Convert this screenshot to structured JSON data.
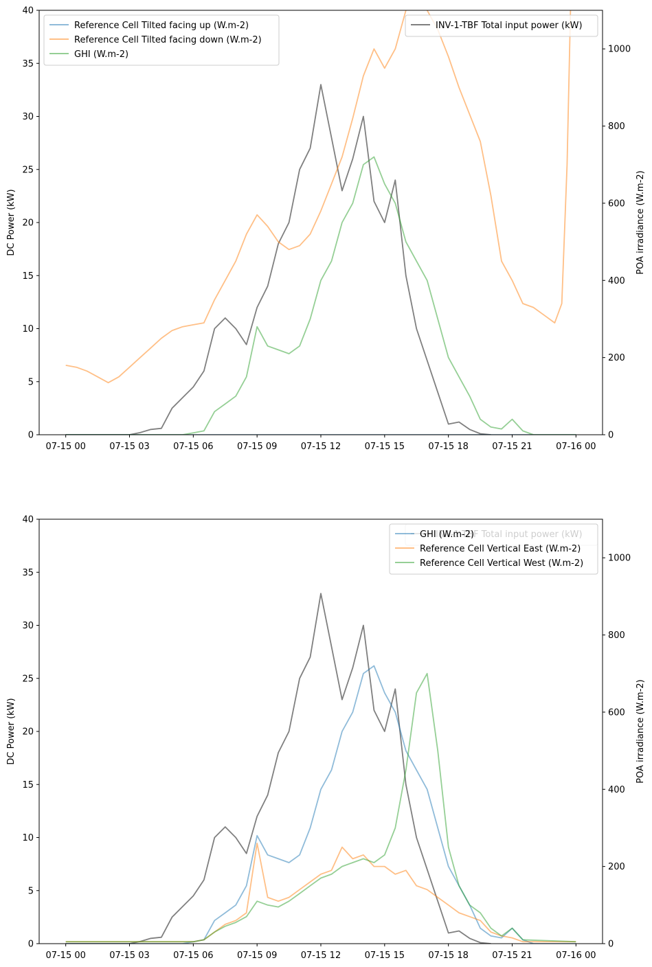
{
  "chart_data": [
    {
      "type": "line",
      "title": "",
      "xlabel": "",
      "ylabel": "DC Power (kW)",
      "ylabel_right": "POA irradiance (W.m-2)",
      "x_ticks": [
        "07-15 00",
        "07-15 03",
        "07-15 06",
        "07-15 09",
        "07-15 12",
        "07-15 15",
        "07-15 18",
        "07-15 21",
        "07-16 00"
      ],
      "xlim_hours": [
        -1.25,
        25.25
      ],
      "ylim": [
        0,
        40
      ],
      "ylim_right": [
        0,
        1100
      ],
      "y_ticks": [
        0,
        5,
        10,
        15,
        20,
        25,
        30,
        35,
        40
      ],
      "y_ticks_right": [
        0,
        200,
        400,
        600,
        800,
        1000
      ],
      "grid": false,
      "legend_left": {
        "placement": "top-left",
        "entries": [
          "Reference Cell Tilted facing up (W.m-2)",
          "Reference Cell Tilted facing down (W.m-2)",
          "GHI (W.m-2)"
        ]
      },
      "legend_right": {
        "placement": "top-right",
        "entries": [
          "INV-1-TBF Total input power (kW)"
        ]
      },
      "series": [
        {
          "name": "INV-1-TBF Total input power (kW)",
          "axis": "left",
          "color": "#7f7f7f",
          "x": [
            "07-15 00:00",
            "07-15 03:00",
            "07-15 03:30",
            "07-15 04:00",
            "07-15 04:30",
            "07-15 05:00",
            "07-15 05:30",
            "07-15 06:00",
            "07-15 06:30",
            "07-15 07:00",
            "07-15 07:30",
            "07-15 08:00",
            "07-15 08:30",
            "07-15 09:00",
            "07-15 09:30",
            "07-15 10:00",
            "07-15 10:30",
            "07-15 11:00",
            "07-15 11:30",
            "07-15 12:00",
            "07-15 12:30",
            "07-15 13:00",
            "07-15 13:30",
            "07-15 14:00",
            "07-15 14:30",
            "07-15 15:00",
            "07-15 15:30",
            "07-15 16:00",
            "07-15 16:30",
            "07-15 17:00",
            "07-15 17:30",
            "07-15 18:00",
            "07-15 18:30",
            "07-15 19:00",
            "07-15 19:30",
            "07-15 20:00"
          ],
          "y": [
            0,
            0,
            0.2,
            0.5,
            0.6,
            2.5,
            3.5,
            4.5,
            6.0,
            10.0,
            11.0,
            10.0,
            8.5,
            12.0,
            14.0,
            18.0,
            20.0,
            25.0,
            27.0,
            33.0,
            28.0,
            23.0,
            26.0,
            30.0,
            22.0,
            20.0,
            24.0,
            15.0,
            10.0,
            7.0,
            4.0,
            1.0,
            1.2,
            0.5,
            0.1,
            0
          ]
        },
        {
          "name": "Reference Cell Tilted facing up (W.m-2)",
          "axis": "right",
          "color": "#1f77b4",
          "x": [
            "07-15 00:00",
            "07-15 05:00",
            "07-15 20:00",
            "07-16 00:00"
          ],
          "y": [
            0,
            0,
            0,
            0
          ]
        },
        {
          "name": "Reference Cell Tilted facing down (W.m-2)",
          "axis": "right",
          "color": "#ff7f0e",
          "x": [
            "07-15 00:00",
            "07-15 00:30",
            "07-15 01:00",
            "07-15 01:30",
            "07-15 02:00",
            "07-15 02:30",
            "07-15 03:00",
            "07-15 03:30",
            "07-15 04:00",
            "07-15 04:30",
            "07-15 05:00",
            "07-15 05:30",
            "07-15 06:00",
            "07-15 06:30",
            "07-15 07:00",
            "07-15 07:30",
            "07-15 08:00",
            "07-15 08:30",
            "07-15 09:00",
            "07-15 09:30",
            "07-15 10:00",
            "07-15 10:30",
            "07-15 11:00",
            "07-15 11:30",
            "07-15 12:00",
            "07-15 12:30",
            "07-15 13:00",
            "07-15 13:30",
            "07-15 14:00",
            "07-15 14:30",
            "07-15 15:00",
            "07-15 15:30",
            "07-15 16:00",
            "07-15 16:30",
            "07-15 17:00",
            "07-15 17:30",
            "07-15 18:00",
            "07-15 18:30",
            "07-15 19:00",
            "07-15 19:30",
            "07-15 20:00",
            "07-15 20:30",
            "07-15 21:00",
            "07-15 21:30",
            "07-15 22:00",
            "07-15 22:30",
            "07-15 23:00",
            "07-15 23:20",
            "07-15 23:35",
            "07-15 23:45"
          ],
          "y": [
            180,
            175,
            165,
            150,
            135,
            150,
            175,
            200,
            225,
            250,
            270,
            280,
            285,
            290,
            350,
            400,
            450,
            520,
            570,
            540,
            500,
            480,
            490,
            520,
            580,
            650,
            720,
            820,
            930,
            1000,
            950,
            1000,
            1100,
            1150,
            1100,
            1050,
            980,
            900,
            830,
            760,
            620,
            450,
            400,
            340,
            330,
            310,
            290,
            340,
            700,
            1120
          ]
        },
        {
          "name": "GHI (W.m-2)",
          "axis": "right",
          "color": "#2ca02c",
          "x": [
            "07-15 00:00",
            "07-15 05:30",
            "07-15 06:00",
            "07-15 06:30",
            "07-15 07:00",
            "07-15 07:30",
            "07-15 08:00",
            "07-15 08:30",
            "07-15 09:00",
            "07-15 09:30",
            "07-15 10:00",
            "07-15 10:30",
            "07-15 11:00",
            "07-15 11:30",
            "07-15 12:00",
            "07-15 12:30",
            "07-15 13:00",
            "07-15 13:30",
            "07-15 14:00",
            "07-15 14:30",
            "07-15 15:00",
            "07-15 15:30",
            "07-15 16:00",
            "07-15 16:30",
            "07-15 17:00",
            "07-15 17:30",
            "07-15 18:00",
            "07-15 18:30",
            "07-15 19:00",
            "07-15 19:30",
            "07-15 20:00",
            "07-15 20:30",
            "07-15 21:00",
            "07-15 21:30",
            "07-15 22:00",
            "07-16 00:00"
          ],
          "y": [
            0,
            0,
            5,
            10,
            60,
            80,
            100,
            150,
            280,
            230,
            220,
            210,
            230,
            300,
            400,
            450,
            550,
            600,
            700,
            720,
            650,
            600,
            500,
            450,
            400,
            300,
            200,
            150,
            100,
            40,
            20,
            15,
            40,
            10,
            0,
            0
          ]
        }
      ]
    },
    {
      "type": "line",
      "title": "",
      "xlabel": "",
      "ylabel": "DC Power (kW)",
      "ylabel_right": "POA irradiance (W.m-2)",
      "x_ticks": [
        "07-15 00",
        "07-15 03",
        "07-15 06",
        "07-15 09",
        "07-15 12",
        "07-15 15",
        "07-15 18",
        "07-15 21",
        "07-16 00"
      ],
      "xlim_hours": [
        -1.25,
        25.25
      ],
      "ylim": [
        0,
        40
      ],
      "ylim_right": [
        0,
        1100
      ],
      "y_ticks": [
        0,
        5,
        10,
        15,
        20,
        25,
        30,
        35,
        40
      ],
      "y_ticks_right": [
        0,
        200,
        400,
        600,
        800,
        1000
      ],
      "grid": false,
      "legend_back": {
        "placement": "top-right",
        "entries": [
          "INV-1-TBF Total input power (kW)"
        ]
      },
      "legend_front": {
        "placement": "top-right",
        "entries": [
          "GHI (W.m-2)",
          "Reference Cell Vertical East (W.m-2)",
          "Reference Cell Vertical West (W.m-2)"
        ]
      },
      "series": [
        {
          "name": "INV-1-TBF Total input power (kW)",
          "axis": "left",
          "color": "#7f7f7f",
          "x": [
            "07-15 00:00",
            "07-15 03:00",
            "07-15 03:30",
            "07-15 04:00",
            "07-15 04:30",
            "07-15 05:00",
            "07-15 05:30",
            "07-15 06:00",
            "07-15 06:30",
            "07-15 07:00",
            "07-15 07:30",
            "07-15 08:00",
            "07-15 08:30",
            "07-15 09:00",
            "07-15 09:30",
            "07-15 10:00",
            "07-15 10:30",
            "07-15 11:00",
            "07-15 11:30",
            "07-15 12:00",
            "07-15 12:30",
            "07-15 13:00",
            "07-15 13:30",
            "07-15 14:00",
            "07-15 14:30",
            "07-15 15:00",
            "07-15 15:30",
            "07-15 16:00",
            "07-15 16:30",
            "07-15 17:00",
            "07-15 17:30",
            "07-15 18:00",
            "07-15 18:30",
            "07-15 19:00",
            "07-15 19:30",
            "07-15 20:00"
          ],
          "y": [
            0,
            0,
            0.2,
            0.5,
            0.6,
            2.5,
            3.5,
            4.5,
            6.0,
            10.0,
            11.0,
            10.0,
            8.5,
            12.0,
            14.0,
            18.0,
            20.0,
            25.0,
            27.0,
            33.0,
            28.0,
            23.0,
            26.0,
            30.0,
            22.0,
            20.0,
            24.0,
            15.0,
            10.0,
            7.0,
            4.0,
            1.0,
            1.2,
            0.5,
            0.1,
            0
          ]
        },
        {
          "name": "GHI (W.m-2)",
          "axis": "right",
          "color": "#1f77b4",
          "x": [
            "07-15 00:00",
            "07-15 05:30",
            "07-15 06:00",
            "07-15 06:30",
            "07-15 07:00",
            "07-15 07:30",
            "07-15 08:00",
            "07-15 08:30",
            "07-15 09:00",
            "07-15 09:30",
            "07-15 10:00",
            "07-15 10:30",
            "07-15 11:00",
            "07-15 11:30",
            "07-15 12:00",
            "07-15 12:30",
            "07-15 13:00",
            "07-15 13:30",
            "07-15 14:00",
            "07-15 14:30",
            "07-15 15:00",
            "07-15 15:30",
            "07-15 16:00",
            "07-15 16:30",
            "07-15 17:00",
            "07-15 17:30",
            "07-15 18:00",
            "07-15 18:30",
            "07-15 19:00",
            "07-15 19:30",
            "07-15 20:00",
            "07-15 20:30",
            "07-15 21:00",
            "07-15 21:30",
            "07-15 22:00",
            "07-16 00:00"
          ],
          "y": [
            0,
            0,
            5,
            10,
            60,
            80,
            100,
            150,
            280,
            230,
            220,
            210,
            230,
            300,
            400,
            450,
            550,
            600,
            700,
            720,
            650,
            600,
            500,
            450,
            400,
            300,
            200,
            150,
            100,
            40,
            20,
            15,
            40,
            10,
            0,
            0
          ]
        },
        {
          "name": "Reference Cell Vertical East (W.m-2)",
          "axis": "right",
          "color": "#ff7f0e",
          "x": [
            "07-15 00:00",
            "07-15 06:00",
            "07-15 06:30",
            "07-15 07:00",
            "07-15 07:30",
            "07-15 08:00",
            "07-15 08:30",
            "07-15 09:00",
            "07-15 09:30",
            "07-15 10:00",
            "07-15 10:30",
            "07-15 11:00",
            "07-15 11:30",
            "07-15 12:00",
            "07-15 12:30",
            "07-15 13:00",
            "07-15 13:30",
            "07-15 14:00",
            "07-15 14:30",
            "07-15 15:00",
            "07-15 15:30",
            "07-15 16:00",
            "07-15 16:30",
            "07-15 17:00",
            "07-15 17:30",
            "07-15 18:00",
            "07-15 18:30",
            "07-15 19:00",
            "07-15 19:30",
            "07-15 20:00",
            "07-15 20:30",
            "07-15 21:00",
            "07-15 21:30",
            "07-16 00:00"
          ],
          "y": [
            5,
            5,
            10,
            30,
            50,
            60,
            80,
            260,
            120,
            110,
            120,
            140,
            160,
            180,
            190,
            250,
            220,
            230,
            200,
            200,
            180,
            190,
            150,
            140,
            120,
            100,
            80,
            70,
            60,
            30,
            20,
            15,
            5,
            5
          ]
        },
        {
          "name": "Reference Cell Vertical West (W.m-2)",
          "axis": "right",
          "color": "#2ca02c",
          "x": [
            "07-15 00:00",
            "07-15 06:00",
            "07-15 06:30",
            "07-15 07:00",
            "07-15 07:30",
            "07-15 08:00",
            "07-15 08:30",
            "07-15 09:00",
            "07-15 09:30",
            "07-15 10:00",
            "07-15 10:30",
            "07-15 11:00",
            "07-15 11:30",
            "07-15 12:00",
            "07-15 12:30",
            "07-15 13:00",
            "07-15 13:30",
            "07-15 14:00",
            "07-15 14:30",
            "07-15 15:00",
            "07-15 15:30",
            "07-15 16:00",
            "07-15 16:30",
            "07-15 17:00",
            "07-15 17:30",
            "07-15 18:00",
            "07-15 18:30",
            "07-15 19:00",
            "07-15 19:30",
            "07-15 20:00",
            "07-15 20:30",
            "07-15 21:00",
            "07-15 21:30",
            "07-16 00:00"
          ],
          "y": [
            5,
            5,
            10,
            30,
            45,
            55,
            70,
            110,
            100,
            95,
            110,
            130,
            150,
            170,
            180,
            200,
            210,
            220,
            210,
            230,
            300,
            450,
            650,
            700,
            500,
            250,
            150,
            100,
            80,
            40,
            20,
            40,
            10,
            5
          ]
        }
      ]
    }
  ]
}
